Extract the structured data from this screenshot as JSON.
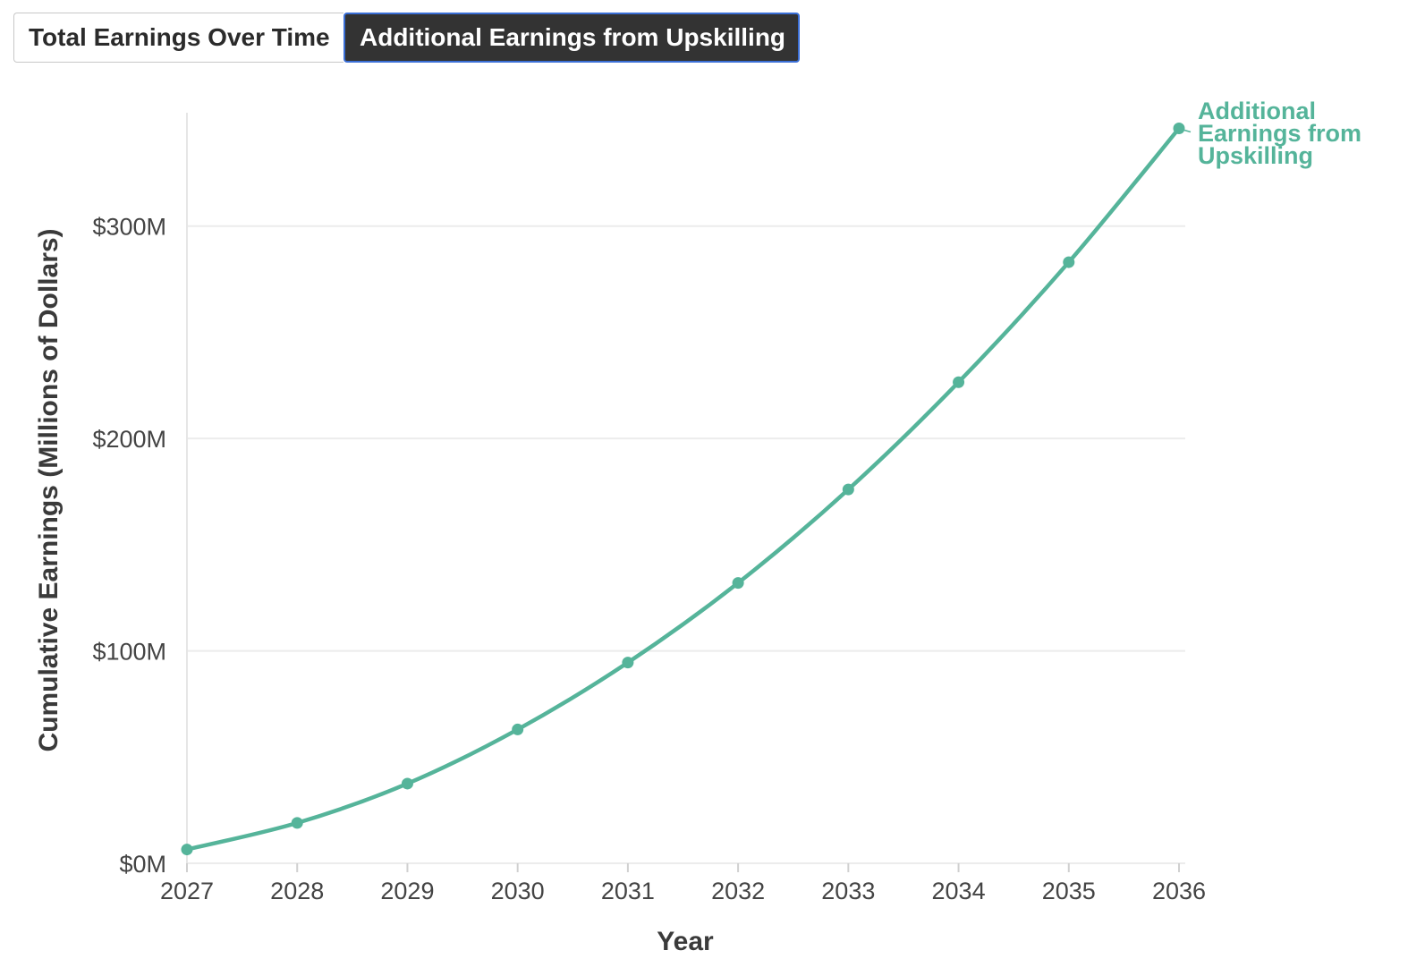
{
  "tabs": [
    {
      "label": "Total Earnings Over Time",
      "active": false
    },
    {
      "label": "Additional Earnings from Upskilling",
      "active": true
    }
  ],
  "colors": {
    "series": "#55b49a",
    "grid": "#ececec",
    "tab_active_bg": "#333333",
    "tab_active_border": "#3b6fd6"
  },
  "chart_data": {
    "type": "line",
    "title": "",
    "xlabel": "Year",
    "ylabel": "Cumulative Earnings (Millions of Dollars)",
    "x": [
      2027,
      2028,
      2029,
      2030,
      2031,
      2032,
      2033,
      2034,
      2035,
      2036
    ],
    "x_tick_labels": [
      "2027",
      "2028",
      "2029",
      "2030",
      "2031",
      "2032",
      "2033",
      "2034",
      "2035",
      "2036"
    ],
    "ylim": [
      0,
      350
    ],
    "y_ticks": [
      0,
      100,
      200,
      300
    ],
    "y_tick_labels": [
      "$0M",
      "$100M",
      "$200M",
      "$300M"
    ],
    "grid": true,
    "series": [
      {
        "name": "Additional Earnings from Upskilling",
        "label_lines": [
          "Additional",
          "Earnings from",
          "Upskilling"
        ],
        "values": [
          6.5,
          19,
          37.5,
          63,
          94.5,
          132,
          176,
          226.5,
          283,
          346
        ]
      }
    ]
  }
}
